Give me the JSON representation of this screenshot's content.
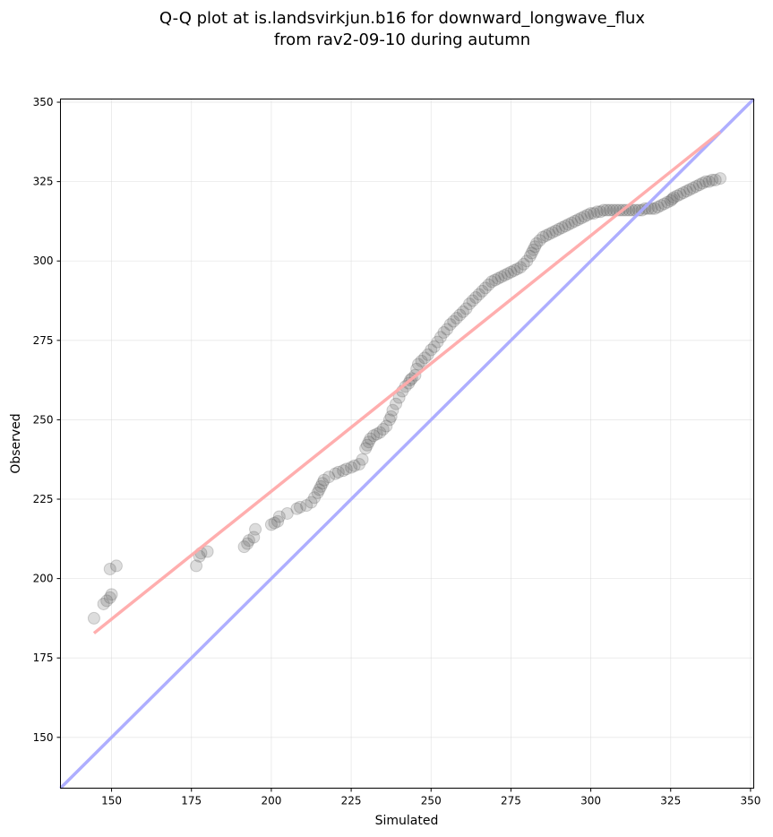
{
  "chart_data": {
    "type": "scatter",
    "title_line1": "Q-Q plot at is.landsvirkjun.b16 for downward_longwave_flux",
    "title_line2": "from rav2-09-10 during autumn",
    "xlabel": "Simulated",
    "ylabel": "Observed",
    "xlim": [
      134,
      351
    ],
    "ylim": [
      134,
      351
    ],
    "xticks": [
      150,
      175,
      200,
      225,
      250,
      275,
      300,
      325,
      350
    ],
    "yticks": [
      150,
      175,
      200,
      225,
      250,
      275,
      300,
      325,
      350
    ],
    "grid": true,
    "colors": {
      "points": "#555555",
      "reference_line": "#aaaaff",
      "fit_line": "#ffaaaa"
    },
    "reference_line": {
      "name": "1:1 line",
      "x": [
        134,
        351
      ],
      "y": [
        134,
        351
      ]
    },
    "fit_line": {
      "name": "fit",
      "x": [
        144.5,
        340.5
      ],
      "y": [
        182.8,
        340.6
      ]
    },
    "quantiles": {
      "x": [
        144.5,
        147.5,
        148.5,
        149.5,
        150.0,
        149.5,
        151.5,
        176.5,
        177.5,
        178.0,
        180.0,
        191.5,
        192.5,
        193.0,
        194.5,
        195.0,
        200.0,
        201.0,
        202.0,
        202.5,
        205.0,
        208.0,
        209.0,
        211.0,
        212.5,
        213.5,
        214.5,
        215.0,
        215.5,
        216.0,
        216.5,
        218.0,
        220.0,
        221.0,
        222.5,
        223.5,
        225.0,
        226.0,
        227.5,
        228.5,
        229.5,
        230.0,
        230.5,
        231.0,
        232.0,
        233.0,
        234.0,
        235.0,
        236.0,
        237.0,
        237.5,
        238.0,
        239.0,
        240.0,
        241.0,
        242.0,
        243.0,
        243.5,
        244.0,
        245.0,
        245.5,
        246.0,
        247.0,
        248.0,
        249.0,
        250.0,
        251.0,
        252.0,
        253.0,
        254.0,
        255.0,
        256.0,
        257.0,
        258.0,
        259.0,
        260.0,
        261.0,
        262.0,
        263.0,
        264.0,
        265.0,
        266.0,
        267.0,
        268.0,
        269.0,
        270.0,
        271.0,
        272.0,
        273.0,
        274.0,
        275.0,
        276.0,
        277.0,
        278.0,
        279.0,
        280.0,
        281.0,
        281.5,
        282.0,
        282.5,
        283.0,
        284.0,
        285.0,
        286.0,
        287.0,
        288.0,
        289.0,
        290.0,
        291.0,
        292.0,
        293.0,
        294.0,
        295.0,
        296.0,
        297.0,
        298.0,
        299.0,
        300.0,
        301.0,
        302.0,
        303.0,
        304.0,
        305.0,
        306.0,
        307.0,
        308.0,
        309.0,
        310.0,
        311.0,
        312.0,
        313.0,
        314.0,
        315.0,
        316.0,
        317.0,
        318.0,
        319.0,
        320.0,
        321.0,
        322.0,
        323.0,
        324.0,
        325.0,
        325.5,
        326.0,
        327.0,
        328.0,
        329.0,
        330.0,
        331.0,
        332.0,
        333.0,
        334.0,
        335.0,
        336.0,
        337.0,
        338.0,
        339.0,
        340.5
      ],
      "y": [
        187.5,
        192.0,
        193.0,
        194.0,
        195.0,
        203.0,
        204.0,
        204.0,
        207.0,
        208.0,
        208.5,
        210.0,
        211.0,
        212.0,
        213.0,
        215.5,
        217.0,
        217.5,
        218.0,
        219.5,
        220.5,
        222.0,
        222.5,
        223.0,
        224.0,
        225.5,
        227.0,
        228.0,
        229.0,
        230.0,
        231.0,
        232.0,
        233.0,
        233.5,
        234.0,
        234.5,
        235.0,
        235.5,
        236.0,
        237.5,
        241.0,
        242.0,
        243.0,
        244.0,
        245.0,
        245.5,
        246.0,
        247.0,
        248.0,
        250.0,
        251.0,
        253.0,
        255.0,
        257.0,
        259.0,
        260.5,
        261.5,
        262.5,
        263.0,
        264.0,
        266.0,
        267.5,
        268.5,
        269.5,
        270.5,
        272.0,
        273.0,
        274.5,
        276.0,
        277.5,
        278.5,
        280.0,
        281.0,
        282.0,
        283.0,
        284.0,
        285.0,
        286.5,
        287.5,
        288.5,
        289.5,
        290.5,
        291.5,
        292.5,
        293.5,
        294.0,
        294.5,
        295.0,
        295.5,
        296.0,
        296.5,
        297.0,
        297.5,
        298.0,
        299.0,
        300.0,
        301.5,
        302.5,
        303.5,
        304.5,
        305.5,
        306.5,
        307.5,
        308.0,
        308.5,
        309.0,
        309.5,
        310.0,
        310.5,
        311.0,
        311.5,
        312.0,
        312.5,
        313.0,
        313.5,
        314.0,
        314.5,
        315.0,
        315.0,
        315.5,
        315.5,
        316.0,
        316.0,
        316.0,
        316.0,
        316.0,
        316.0,
        316.0,
        316.0,
        316.0,
        316.0,
        316.0,
        316.0,
        316.0,
        316.5,
        316.5,
        316.5,
        316.5,
        317.0,
        317.5,
        318.0,
        318.5,
        319.0,
        319.5,
        320.0,
        320.5,
        321.0,
        321.5,
        322.0,
        322.5,
        323.0,
        323.5,
        324.0,
        324.5,
        325.0,
        325.0,
        325.5,
        325.5,
        326.0
      ]
    }
  }
}
